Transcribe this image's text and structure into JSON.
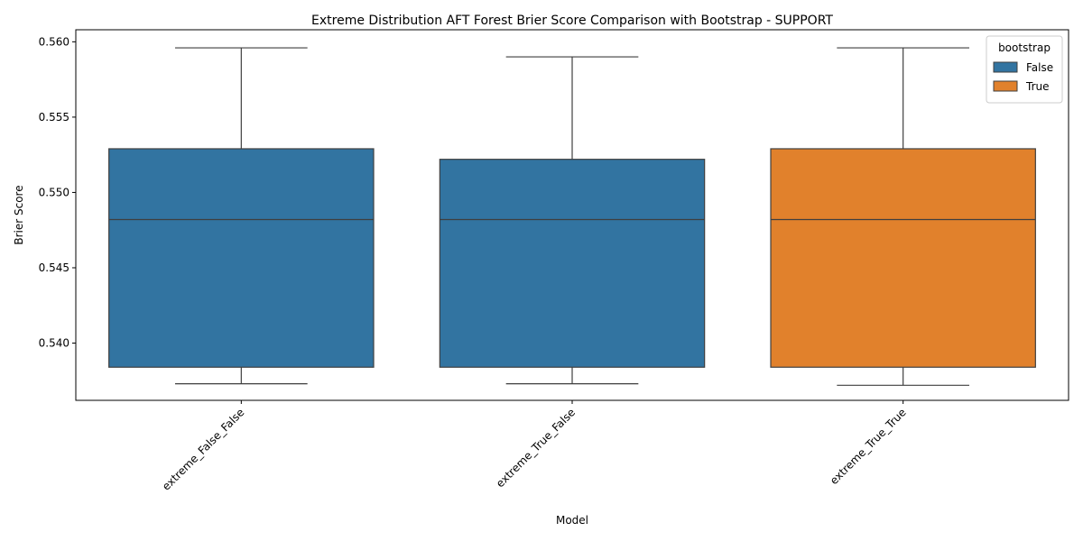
{
  "chart_data": {
    "type": "box",
    "title": "Extreme Distribution AFT Forest Brier Score Comparison with Bootstrap  - SUPPORT",
    "xlabel": "Model",
    "ylabel": "Brier Score",
    "ylim": [
      0.5362,
      0.5608
    ],
    "yticks": [
      0.54,
      0.545,
      0.55,
      0.555,
      0.56
    ],
    "ytick_labels": [
      "0.540",
      "0.545",
      "0.550",
      "0.555",
      "0.560"
    ],
    "categories": [
      "extreme_False_False",
      "extreme_True_False",
      "extreme_True_True"
    ],
    "boxes": [
      {
        "category": "extreme_False_False",
        "hue": "False",
        "whislo": 0.5373,
        "q1": 0.5384,
        "med": 0.5482,
        "q3": 0.5529,
        "whishi": 0.5596
      },
      {
        "category": "extreme_True_False",
        "hue": "False",
        "whislo": 0.5373,
        "q1": 0.5384,
        "med": 0.5482,
        "q3": 0.5522,
        "whishi": 0.559
      },
      {
        "category": "extreme_True_True",
        "hue": "True",
        "whislo": 0.5372,
        "q1": 0.5384,
        "med": 0.5482,
        "q3": 0.5529,
        "whishi": 0.5596
      }
    ],
    "legend": {
      "title": "bootstrap",
      "placement": "top-right",
      "entries": [
        {
          "label": "False",
          "color": "#3274a1"
        },
        {
          "label": "True",
          "color": "#e1812c"
        }
      ]
    },
    "grid": false,
    "colors": {
      "False": "#3274a1",
      "True": "#e1812c",
      "lines": "#3f3f3f"
    }
  }
}
